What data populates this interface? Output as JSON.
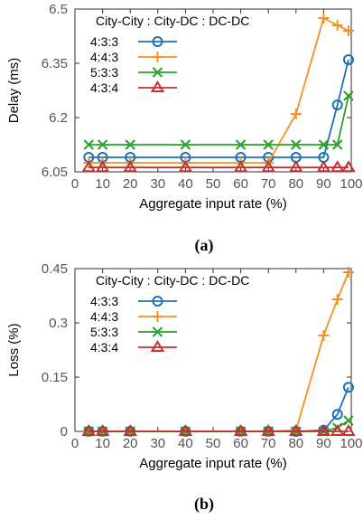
{
  "legend_title": "City-City : City-DC : DC-DC",
  "chart_data": [
    {
      "type": "line",
      "caption": "(a)",
      "xlabel": "Aggregate input rate (%)",
      "ylabel": "Delay (ms)",
      "xlim": [
        0,
        100
      ],
      "ylim": [
        6.05,
        6.5
      ],
      "xticks": [
        "0",
        "10",
        "20",
        "30",
        "40",
        "50",
        "60",
        "70",
        "80",
        "90",
        "100"
      ],
      "yticks": [
        "6.05",
        "6.2",
        "6.35",
        "6.5"
      ],
      "legend": "top-left",
      "series": [
        {
          "name": "4:3:3",
          "color": "#1f6fb5",
          "marker": "circle",
          "x": [
            5,
            10,
            20,
            40,
            60,
            70,
            80,
            90,
            95,
            99
          ],
          "y": [
            6.09,
            6.09,
            6.09,
            6.09,
            6.09,
            6.09,
            6.09,
            6.09,
            6.235,
            6.36
          ]
        },
        {
          "name": "4:4:3",
          "color": "#f7901e",
          "marker": "plus",
          "x": [
            5,
            10,
            20,
            40,
            60,
            70,
            80,
            90,
            95,
            99
          ],
          "y": [
            6.075,
            6.075,
            6.075,
            6.075,
            6.075,
            6.075,
            6.21,
            6.475,
            6.455,
            6.44
          ]
        },
        {
          "name": "5:3:3",
          "color": "#2aa12a",
          "marker": "x",
          "x": [
            5,
            10,
            20,
            40,
            60,
            70,
            80,
            90,
            95,
            99
          ],
          "y": [
            6.125,
            6.125,
            6.125,
            6.125,
            6.125,
            6.125,
            6.125,
            6.125,
            6.125,
            6.26
          ]
        },
        {
          "name": "4:3:4",
          "color": "#c42f2f",
          "marker": "triangle",
          "x": [
            5,
            10,
            20,
            40,
            60,
            70,
            80,
            90,
            95,
            99
          ],
          "y": [
            6.062,
            6.062,
            6.062,
            6.062,
            6.062,
            6.062,
            6.062,
            6.062,
            6.062,
            6.062
          ]
        }
      ]
    },
    {
      "type": "line",
      "caption": "(b)",
      "xlabel": "Aggregate input rate (%)",
      "ylabel": "Loss (%)",
      "xlim": [
        0,
        100
      ],
      "ylim": [
        0,
        0.45
      ],
      "xticks": [
        "0",
        "10",
        "20",
        "30",
        "40",
        "50",
        "60",
        "70",
        "80",
        "90",
        "100"
      ],
      "yticks": [
        "0",
        "0.15",
        "0.3",
        "0.45"
      ],
      "legend": "top-left",
      "series": [
        {
          "name": "4:3:3",
          "color": "#1f6fb5",
          "marker": "circle",
          "x": [
            5,
            10,
            20,
            40,
            60,
            70,
            80,
            90,
            95,
            99
          ],
          "y": [
            0,
            0,
            0,
            0,
            0,
            0,
            0,
            0.003,
            0.047,
            0.122
          ]
        },
        {
          "name": "4:4:3",
          "color": "#f7901e",
          "marker": "plus",
          "x": [
            5,
            10,
            20,
            40,
            60,
            70,
            80,
            90,
            95,
            99
          ],
          "y": [
            0,
            0,
            0,
            0,
            0,
            0,
            0.003,
            0.265,
            0.365,
            0.44
          ]
        },
        {
          "name": "5:3:3",
          "color": "#2aa12a",
          "marker": "x",
          "x": [
            5,
            10,
            20,
            40,
            60,
            70,
            80,
            90,
            95,
            99
          ],
          "y": [
            0,
            0,
            0,
            0,
            0,
            0,
            0,
            0,
            0.01,
            0.03
          ]
        },
        {
          "name": "4:3:4",
          "color": "#c42f2f",
          "marker": "triangle",
          "x": [
            5,
            10,
            20,
            40,
            60,
            70,
            80,
            90,
            95,
            99
          ],
          "y": [
            0,
            0,
            0,
            0,
            0,
            0,
            0,
            0,
            0,
            0
          ]
        }
      ]
    }
  ]
}
